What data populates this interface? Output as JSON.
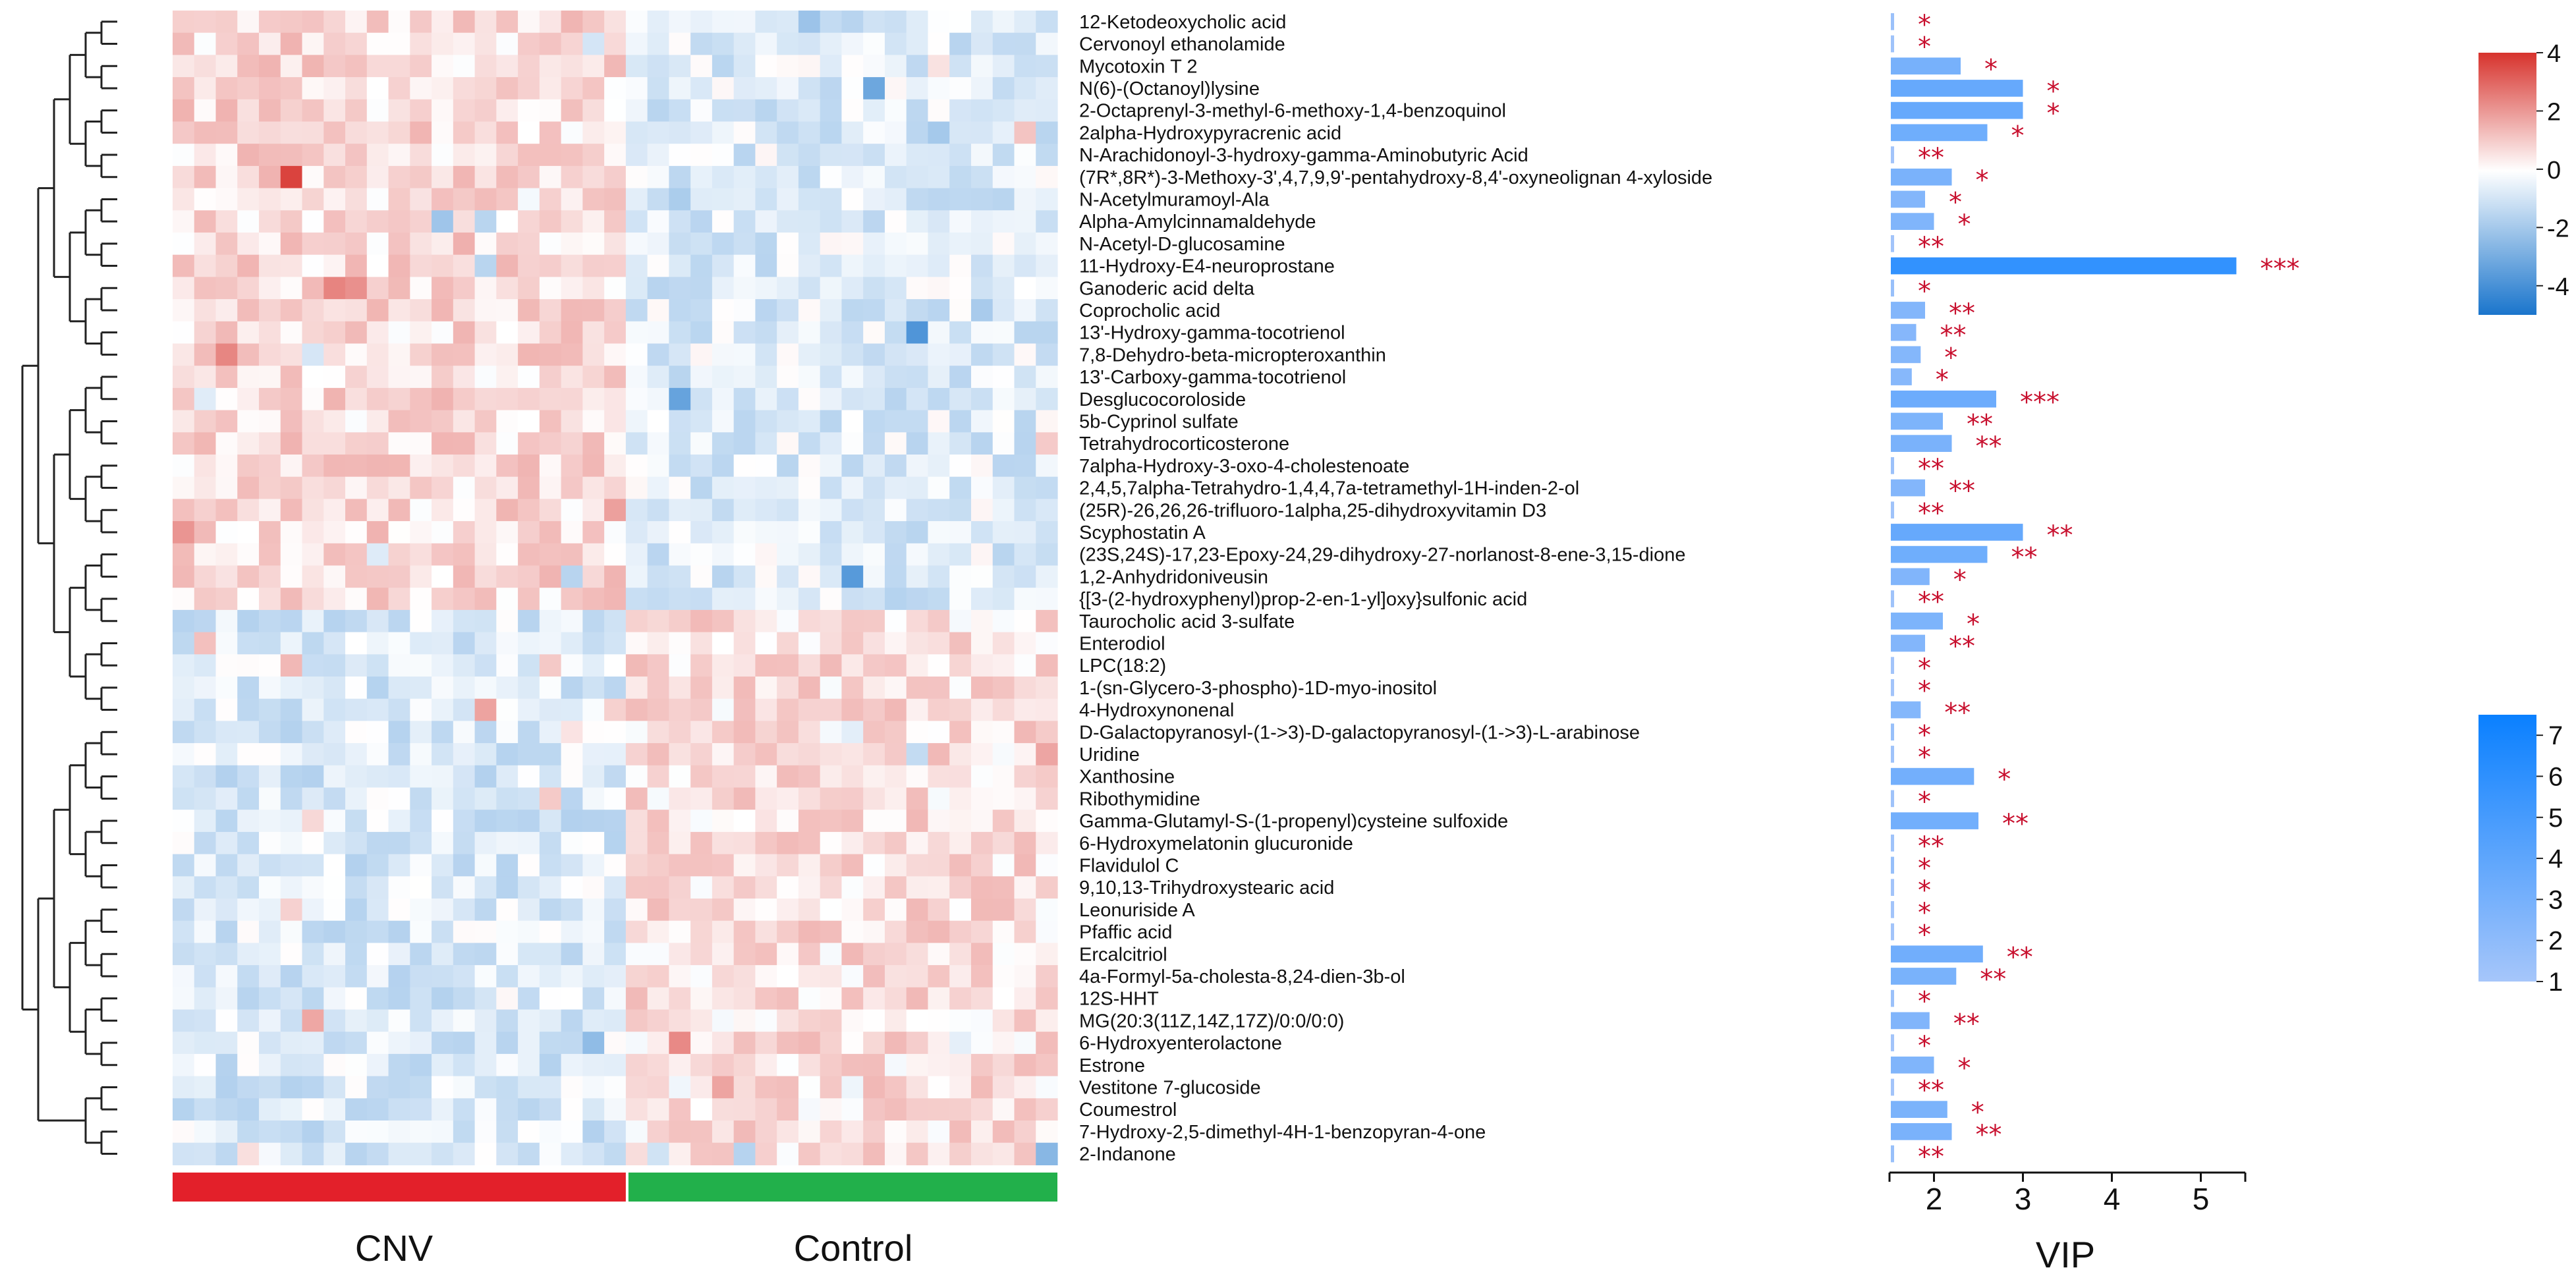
{
  "chart_data": {
    "type": "heatmap",
    "title": "",
    "metabolites": [
      {
        "name": "12-Ketodeoxycholic acid",
        "vip": 1.2,
        "sig": "*",
        "cluster": "up"
      },
      {
        "name": "Cervonoyl ethanolamide",
        "vip": 1.1,
        "sig": "*",
        "cluster": "up"
      },
      {
        "name": "Mycotoxin T 2",
        "vip": 2.3,
        "sig": "*",
        "cluster": "up"
      },
      {
        "name": "N(6)-(Octanoyl)lysine",
        "vip": 3.0,
        "sig": "*",
        "cluster": "up"
      },
      {
        "name": "2-Octaprenyl-3-methyl-6-methoxy-1,4-benzoquinol",
        "vip": 3.0,
        "sig": "*",
        "cluster": "up"
      },
      {
        "name": "2alpha-Hydroxypyracrenic acid",
        "vip": 2.6,
        "sig": "*",
        "cluster": "up"
      },
      {
        "name": "N-Arachidonoyl-3-hydroxy-gamma-Aminobutyric Acid",
        "vip": 1.05,
        "sig": "**",
        "cluster": "up"
      },
      {
        "name": "(7R*,8R*)-3-Methoxy-3',4,7,9,9'-pentahydroxy-8,4'-oxyneolignan 4-xyloside",
        "vip": 2.2,
        "sig": "*",
        "cluster": "up"
      },
      {
        "name": "N-Acetylmuramoyl-Ala",
        "vip": 1.9,
        "sig": "*",
        "cluster": "up"
      },
      {
        "name": "Alpha-Amylcinnamaldehyde",
        "vip": 2.0,
        "sig": "*",
        "cluster": "up"
      },
      {
        "name": "N-Acetyl-D-glucosamine",
        "vip": 1.05,
        "sig": "**",
        "cluster": "up"
      },
      {
        "name": "11-Hydroxy-E4-neuroprostane",
        "vip": 5.4,
        "sig": "***",
        "cluster": "up"
      },
      {
        "name": "Ganoderic acid delta",
        "vip": 1.25,
        "sig": "*",
        "cluster": "up"
      },
      {
        "name": "Coprocholic acid",
        "vip": 1.9,
        "sig": "**",
        "cluster": "up"
      },
      {
        "name": "13'-Hydroxy-gamma-tocotrienol",
        "vip": 1.8,
        "sig": "**",
        "cluster": "up"
      },
      {
        "name": "7,8-Dehydro-beta-micropteroxanthin",
        "vip": 1.85,
        "sig": "*",
        "cluster": "up"
      },
      {
        "name": "13'-Carboxy-gamma-tocotrienol",
        "vip": 1.75,
        "sig": "*",
        "cluster": "up"
      },
      {
        "name": "Desglucocoroloside",
        "vip": 2.7,
        "sig": "***",
        "cluster": "up"
      },
      {
        "name": "5b-Cyprinol sulfate",
        "vip": 2.1,
        "sig": "**",
        "cluster": "up"
      },
      {
        "name": "Tetrahydrocorticosterone",
        "vip": 2.2,
        "sig": "**",
        "cluster": "up"
      },
      {
        "name": "7alpha-Hydroxy-3-oxo-4-cholestenoate",
        "vip": 1.2,
        "sig": "**",
        "cluster": "up"
      },
      {
        "name": "2,4,5,7alpha-Tetrahydro-1,4,4,7a-tetramethyl-1H-inden-2-ol",
        "vip": 1.9,
        "sig": "**",
        "cluster": "up"
      },
      {
        "name": "(25R)-26,26,26-trifluoro-1alpha,25-dihydroxyvitamin D3",
        "vip": 1.1,
        "sig": "**",
        "cluster": "up"
      },
      {
        "name": "Scyphostatin A",
        "vip": 3.0,
        "sig": "**",
        "cluster": "up"
      },
      {
        "name": "(23S,24S)-17,23-Epoxy-24,29-dihydroxy-27-norlanost-8-ene-3,15-dione",
        "vip": 2.6,
        "sig": "**",
        "cluster": "up"
      },
      {
        "name": "1,2-Anhydridoniveusin",
        "vip": 1.95,
        "sig": "*",
        "cluster": "up"
      },
      {
        "name": "{[3-(2-hydroxyphenyl)prop-2-en-1-yl]oxy}sulfonic acid",
        "vip": 1.1,
        "sig": "**",
        "cluster": "up"
      },
      {
        "name": "Taurocholic acid 3-sulfate",
        "vip": 2.1,
        "sig": "*",
        "cluster": "down"
      },
      {
        "name": "Enterodiol",
        "vip": 1.9,
        "sig": "**",
        "cluster": "down"
      },
      {
        "name": "LPC(18:2)",
        "vip": 1.05,
        "sig": "*",
        "cluster": "down"
      },
      {
        "name": "1-(sn-Glycero-3-phospho)-1D-myo-inositol",
        "vip": 1.05,
        "sig": "*",
        "cluster": "down"
      },
      {
        "name": "4-Hydroxynonenal",
        "vip": 1.85,
        "sig": "**",
        "cluster": "down"
      },
      {
        "name": "D-Galactopyranosyl-(1->3)-D-galactopyranosyl-(1->3)-L-arabinose",
        "vip": 1.25,
        "sig": "*",
        "cluster": "down"
      },
      {
        "name": "Uridine",
        "vip": 1.1,
        "sig": "*",
        "cluster": "down"
      },
      {
        "name": "Xanthosine",
        "vip": 2.45,
        "sig": "*",
        "cluster": "down"
      },
      {
        "name": "Ribothymidine",
        "vip": 1.1,
        "sig": "*",
        "cluster": "down"
      },
      {
        "name": "Gamma-Glutamyl-S-(1-propenyl)cysteine sulfoxide",
        "vip": 2.5,
        "sig": "**",
        "cluster": "down"
      },
      {
        "name": "6-Hydroxymelatonin glucuronide",
        "vip": 1.1,
        "sig": "**",
        "cluster": "down"
      },
      {
        "name": "Flavidulol C",
        "vip": 1.3,
        "sig": "*",
        "cluster": "down"
      },
      {
        "name": "9,10,13-Trihydroxystearic acid",
        "vip": 1.05,
        "sig": "*",
        "cluster": "down"
      },
      {
        "name": "Leonuriside A",
        "vip": 1.05,
        "sig": "*",
        "cluster": "down"
      },
      {
        "name": "Pfaffic acid",
        "vip": 1.05,
        "sig": "*",
        "cluster": "down"
      },
      {
        "name": "Ercalcitriol",
        "vip": 2.55,
        "sig": "**",
        "cluster": "down"
      },
      {
        "name": "4a-Formyl-5a-cholesta-8,24-dien-3b-ol",
        "vip": 2.25,
        "sig": "**",
        "cluster": "down"
      },
      {
        "name": "12S-HHT",
        "vip": 1.2,
        "sig": "*",
        "cluster": "down"
      },
      {
        "name": "MG(20:3(11Z,14Z,17Z)/0:0/0:0)",
        "vip": 1.95,
        "sig": "**",
        "cluster": "down"
      },
      {
        "name": "6-Hydroxyenterolactone",
        "vip": 1.05,
        "sig": "*",
        "cluster": "down"
      },
      {
        "name": "Estrone",
        "vip": 2.0,
        "sig": "*",
        "cluster": "down"
      },
      {
        "name": "Vestitone 7-glucoside",
        "vip": 1.05,
        "sig": "**",
        "cluster": "down"
      },
      {
        "name": "Coumestrol",
        "vip": 2.15,
        "sig": "*",
        "cluster": "down"
      },
      {
        "name": "7-Hydroxy-2,5-dimethyl-4H-1-benzopyran-4-one",
        "vip": 2.2,
        "sig": "**",
        "cluster": "down"
      },
      {
        "name": "2-Indanone",
        "vip": 1.25,
        "sig": "**",
        "cluster": "down"
      }
    ],
    "groups": [
      {
        "label": "CNV",
        "samples": 21,
        "color": "#e3202a"
      },
      {
        "label": "Control",
        "samples": 20,
        "color": "#22b04b"
      }
    ],
    "vip_axis": {
      "label": "VIP",
      "min": 1.5,
      "max": 5.5,
      "ticks": [
        "2",
        "3",
        "4",
        "5"
      ],
      "tick_values": [
        2,
        3,
        4,
        5
      ]
    },
    "heat_legend": {
      "range": [
        -5,
        4
      ],
      "ticks": [
        "4",
        "2",
        "0",
        "-2",
        "-4"
      ],
      "tick_values": [
        4,
        2,
        0,
        -2,
        -4
      ],
      "high_color": "#d7332d",
      "mid_color": "#ffffff",
      "low_color": "#1a75cc"
    },
    "vip_legend": {
      "range": [
        1,
        7.5
      ],
      "ticks": [
        "7",
        "6",
        "5",
        "4",
        "3",
        "2",
        "1"
      ],
      "tick_values": [
        7,
        6,
        5,
        4,
        3,
        2,
        1
      ],
      "high_color": "#0a80ff",
      "low_color": "#a6c6fa"
    },
    "colors": {
      "significance": "#c8102e",
      "dendrogram": "#222222",
      "axis": "#111111"
    }
  }
}
